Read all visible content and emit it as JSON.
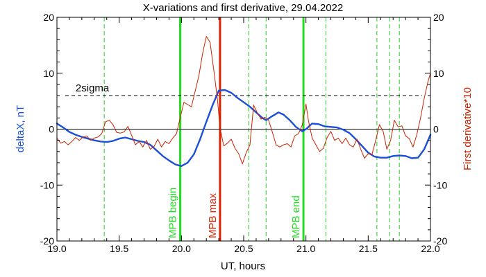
{
  "chart_data": {
    "type": "line",
    "title": "X-variations and first derivative, 29.04.2022",
    "xlabel": "UT, hours",
    "ylabel_left": "deltaX, nT",
    "ylabel_right": "First derivative*10",
    "xlim": [
      19.0,
      22.0
    ],
    "ylim": [
      -20,
      20
    ],
    "xticks": [
      19.0,
      19.5,
      20.0,
      20.5,
      21.0,
      21.5,
      22.0
    ],
    "xtick_labels": [
      "19.0",
      "19.5",
      "20.0",
      "20.5",
      "21.0",
      "21.5",
      "22.0"
    ],
    "yticks": [
      -20,
      -10,
      0,
      10,
      20
    ],
    "ytick_labels": [
      "-20",
      "-10",
      "0",
      "10",
      "20"
    ],
    "grid": false,
    "colors": {
      "deltaX": "#1a4fd6",
      "derivative": "#cc2200",
      "mpb_lines": "#22dd22",
      "mpb_max": "#dd2200",
      "dashed_markers": "#22cc22",
      "zero_line": "#000000",
      "sigma_line": "#000000",
      "left_axis_label": "#1a4fd6",
      "right_axis_label": "#cc2200"
    },
    "sigma": {
      "label": "2sigma",
      "value": 6
    },
    "vertical_lines": [
      {
        "label": "MPB begin",
        "x": 19.99,
        "color": "#22dd22"
      },
      {
        "label": "MPB max",
        "x": 20.31,
        "color": "#dd2200"
      },
      {
        "label": "MPB end",
        "x": 20.98,
        "color": "#22dd22"
      }
    ],
    "dashed_markers_x": [
      19.38,
      20.54,
      20.68,
      21.16,
      21.57,
      21.67,
      21.75
    ],
    "series": [
      {
        "key": "deltaX",
        "points": [
          [
            19.0,
            1.0
          ],
          [
            19.05,
            0.3
          ],
          [
            19.1,
            -0.5
          ],
          [
            19.15,
            -1.0
          ],
          [
            19.2,
            -1.4
          ],
          [
            19.25,
            -1.7
          ],
          [
            19.3,
            -2.0
          ],
          [
            19.35,
            -2.2
          ],
          [
            19.4,
            -2.3
          ],
          [
            19.45,
            -2.1
          ],
          [
            19.5,
            -1.7
          ],
          [
            19.55,
            -1.5
          ],
          [
            19.6,
            -1.8
          ],
          [
            19.65,
            -2.1
          ],
          [
            19.7,
            -2.3
          ],
          [
            19.75,
            -2.8
          ],
          [
            19.8,
            -3.8
          ],
          [
            19.85,
            -4.8
          ],
          [
            19.9,
            -5.6
          ],
          [
            19.95,
            -6.3
          ],
          [
            20.0,
            -6.6
          ],
          [
            20.05,
            -6.0
          ],
          [
            20.1,
            -4.5
          ],
          [
            20.15,
            -1.8
          ],
          [
            20.2,
            1.3
          ],
          [
            20.25,
            4.3
          ],
          [
            20.3,
            6.9
          ],
          [
            20.35,
            7.0
          ],
          [
            20.4,
            6.5
          ],
          [
            20.45,
            5.6
          ],
          [
            20.5,
            4.8
          ],
          [
            20.55,
            4.0
          ],
          [
            20.6,
            3.0
          ],
          [
            20.65,
            2.0
          ],
          [
            20.68,
            1.6
          ],
          [
            20.72,
            2.2
          ],
          [
            20.78,
            3.0
          ],
          [
            20.82,
            2.6
          ],
          [
            20.87,
            1.6
          ],
          [
            20.92,
            0.4
          ],
          [
            20.97,
            -0.4
          ],
          [
            21.0,
            0.0
          ],
          [
            21.05,
            1.0
          ],
          [
            21.1,
            0.9
          ],
          [
            21.15,
            0.5
          ],
          [
            21.2,
            0.4
          ],
          [
            21.25,
            0.3
          ],
          [
            21.3,
            -0.1
          ],
          [
            21.35,
            -0.7
          ],
          [
            21.4,
            -1.8
          ],
          [
            21.45,
            -3.0
          ],
          [
            21.5,
            -4.2
          ],
          [
            21.55,
            -4.9
          ],
          [
            21.6,
            -5.1
          ],
          [
            21.65,
            -5.1
          ],
          [
            21.7,
            -4.8
          ],
          [
            21.75,
            -4.7
          ],
          [
            21.8,
            -4.8
          ],
          [
            21.85,
            -5.2
          ],
          [
            21.9,
            -5.1
          ],
          [
            21.95,
            -3.6
          ],
          [
            22.0,
            -1.0
          ]
        ]
      },
      {
        "key": "derivative",
        "points": [
          [
            19.0,
            -1.6
          ],
          [
            19.03,
            -2.5
          ],
          [
            19.06,
            -2.2
          ],
          [
            19.09,
            -2.8
          ],
          [
            19.12,
            -2.2
          ],
          [
            19.15,
            -1.5
          ],
          [
            19.18,
            -2.0
          ],
          [
            19.21,
            -1.4
          ],
          [
            19.24,
            -1.2
          ],
          [
            19.27,
            -2.0
          ],
          [
            19.3,
            -1.6
          ],
          [
            19.33,
            -1.4
          ],
          [
            19.36,
            -0.8
          ],
          [
            19.39,
            1.3
          ],
          [
            19.42,
            1.6
          ],
          [
            19.45,
            0.8
          ],
          [
            19.48,
            -0.6
          ],
          [
            19.51,
            -0.7
          ],
          [
            19.54,
            -0.5
          ],
          [
            19.57,
            0.5
          ],
          [
            19.6,
            -1.1
          ],
          [
            19.63,
            -2.8
          ],
          [
            19.66,
            -2.2
          ],
          [
            19.69,
            -3.2
          ],
          [
            19.72,
            -2.0
          ],
          [
            19.75,
            -3.6
          ],
          [
            19.78,
            -3.1
          ],
          [
            19.81,
            -1.8
          ],
          [
            19.84,
            -3.2
          ],
          [
            19.87,
            -2.2
          ],
          [
            19.9,
            -2.6
          ],
          [
            19.93,
            -1.6
          ],
          [
            19.96,
            -0.8
          ],
          [
            19.99,
            2.0
          ],
          [
            20.02,
            4.8
          ],
          [
            20.05,
            4.4
          ],
          [
            20.08,
            4.0
          ],
          [
            20.11,
            6.8
          ],
          [
            20.14,
            9.5
          ],
          [
            20.17,
            13.5
          ],
          [
            20.2,
            16.6
          ],
          [
            20.23,
            15.5
          ],
          [
            20.26,
            10.5
          ],
          [
            20.29,
            5.2
          ],
          [
            20.31,
            0.2
          ],
          [
            20.34,
            -3.0
          ],
          [
            20.37,
            -2.5
          ],
          [
            20.4,
            -1.8
          ],
          [
            20.43,
            -3.4
          ],
          [
            20.46,
            -4.4
          ],
          [
            20.49,
            -6.2
          ],
          [
            20.52,
            -4.2
          ],
          [
            20.55,
            -2.8
          ],
          [
            20.58,
            4.3
          ],
          [
            20.61,
            2.9
          ],
          [
            20.64,
            1.8
          ],
          [
            20.67,
            2.1
          ],
          [
            20.7,
            1.6
          ],
          [
            20.73,
            -0.5
          ],
          [
            20.76,
            -2.8
          ],
          [
            20.79,
            -3.2
          ],
          [
            20.82,
            -2.8
          ],
          [
            20.85,
            -2.6
          ],
          [
            20.88,
            -3.2
          ],
          [
            20.91,
            -1.2
          ],
          [
            20.94,
            -0.8
          ],
          [
            20.97,
            0.7
          ],
          [
            21.0,
            4.5
          ],
          [
            21.02,
            1.5
          ],
          [
            21.05,
            -1.6
          ],
          [
            21.08,
            -2.8
          ],
          [
            21.11,
            -4.0
          ],
          [
            21.14,
            -3.4
          ],
          [
            21.17,
            -1.5
          ],
          [
            21.2,
            -0.4
          ],
          [
            21.23,
            -2.0
          ],
          [
            21.26,
            -1.6
          ],
          [
            21.29,
            -2.6
          ],
          [
            21.32,
            -1.6
          ],
          [
            21.35,
            -2.8
          ],
          [
            21.38,
            -3.2
          ],
          [
            21.41,
            -1.8
          ],
          [
            21.44,
            -3.6
          ],
          [
            21.47,
            -5.2
          ],
          [
            21.5,
            -4.4
          ],
          [
            21.53,
            -4.6
          ],
          [
            21.56,
            -2.0
          ],
          [
            21.59,
            0.8
          ],
          [
            21.62,
            -0.4
          ],
          [
            21.65,
            -3.6
          ],
          [
            21.68,
            -2.0
          ],
          [
            21.71,
            1.6
          ],
          [
            21.74,
            0.4
          ],
          [
            21.77,
            0.6
          ],
          [
            21.8,
            -1.2
          ],
          [
            21.83,
            -1.7
          ],
          [
            21.86,
            -3.2
          ],
          [
            21.89,
            -1.0
          ],
          [
            21.92,
            2.0
          ],
          [
            21.95,
            5.5
          ],
          [
            21.98,
            8.5
          ],
          [
            22.0,
            10.0
          ]
        ]
      }
    ]
  }
}
